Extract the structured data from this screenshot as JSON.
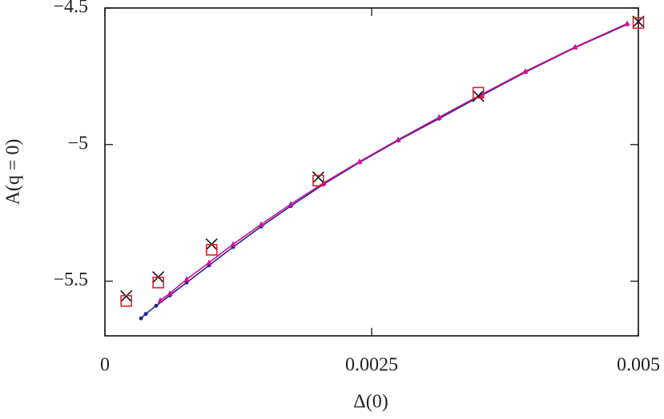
{
  "chart_data": {
    "type": "scatter",
    "xlabel": "Δ(0)",
    "ylabel": "A(q = 0)",
    "xlim": [
      0,
      0.005
    ],
    "ylim": [
      -5.7,
      -4.5
    ],
    "xticks": [
      0,
      0.0025,
      0.005
    ],
    "yticks": [
      {
        "value": -5.5,
        "label": "−5.5"
      },
      {
        "value": -5,
        "label": "−5"
      },
      {
        "value": -4.5,
        "label": "−4.5"
      }
    ],
    "series": [
      {
        "color": "#1f2a8a",
        "marker": "circle",
        "line": true,
        "x": [
          0.000338,
          0.000383,
          0.00048,
          0.000608,
          0.000766,
          0.000976,
          0.001201,
          0.001464,
          0.001742,
          0.00205,
          0.002387,
          0.002748,
          0.003131,
          0.003521,
          0.003941,
          0.004407,
          0.004895
        ],
        "y": [
          -5.636,
          -5.62,
          -5.59,
          -5.552,
          -5.505,
          -5.442,
          -5.375,
          -5.3,
          -5.225,
          -5.145,
          -5.065,
          -4.985,
          -4.905,
          -4.822,
          -4.735,
          -4.645,
          -4.56
        ]
      },
      {
        "color": "#d0109a",
        "marker": "triangle",
        "line": true,
        "x": [
          0.000518,
          0.000608,
          0.000766,
          0.000976,
          0.001201,
          0.001464,
          0.001742,
          0.00205,
          0.002387,
          0.002748,
          0.003131,
          0.003521,
          0.003941,
          0.004407,
          0.004895
        ],
        "y": [
          -5.57,
          -5.545,
          -5.493,
          -5.432,
          -5.365,
          -5.292,
          -5.218,
          -5.14,
          -5.062,
          -4.982,
          -4.9,
          -4.818,
          -4.732,
          -4.643,
          -4.557
        ]
      },
      {
        "color": "#111111",
        "marker": "x",
        "line": false,
        "x": [
          0.0002,
          0.0005,
          0.001,
          0.002,
          0.0035,
          0.005
        ],
        "y": [
          -5.555,
          -5.485,
          -5.365,
          -5.12,
          -4.822,
          -4.55
        ]
      },
      {
        "color": "#e0202a",
        "marker": "square",
        "line": false,
        "x": [
          0.0002,
          0.0005,
          0.001,
          0.002,
          0.0035,
          0.005
        ],
        "y": [
          -5.572,
          -5.505,
          -5.385,
          -5.132,
          -4.81,
          -4.555
        ]
      }
    ]
  }
}
